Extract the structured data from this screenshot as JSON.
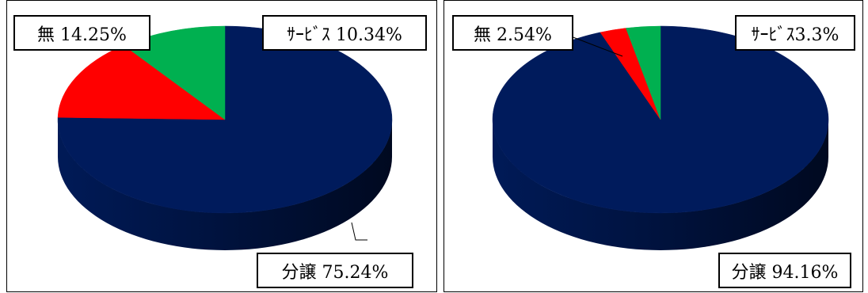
{
  "chart_data": [
    {
      "type": "pie",
      "slices": [
        {
          "label": "分譲",
          "value": 75.24,
          "text": "分譲 75.24%",
          "color": "#001b5c"
        },
        {
          "label": "無",
          "value": 14.25,
          "text": "無 14.25%",
          "color": "#ff0000"
        },
        {
          "label": "サービス",
          "value": 10.34,
          "text": "ｻｰﾋﾞｽ 10.34%",
          "color": "#00b050"
        }
      ]
    },
    {
      "type": "pie",
      "slices": [
        {
          "label": "分譲",
          "value": 94.16,
          "text": "分譲 94.16%",
          "color": "#001b5c"
        },
        {
          "label": "無",
          "value": 2.54,
          "text": "無 2.54%",
          "color": "#ff0000"
        },
        {
          "label": "サービス",
          "value": 3.3,
          "text": "ｻｰﾋﾞｽ3.3%",
          "color": "#00b050"
        }
      ]
    }
  ]
}
